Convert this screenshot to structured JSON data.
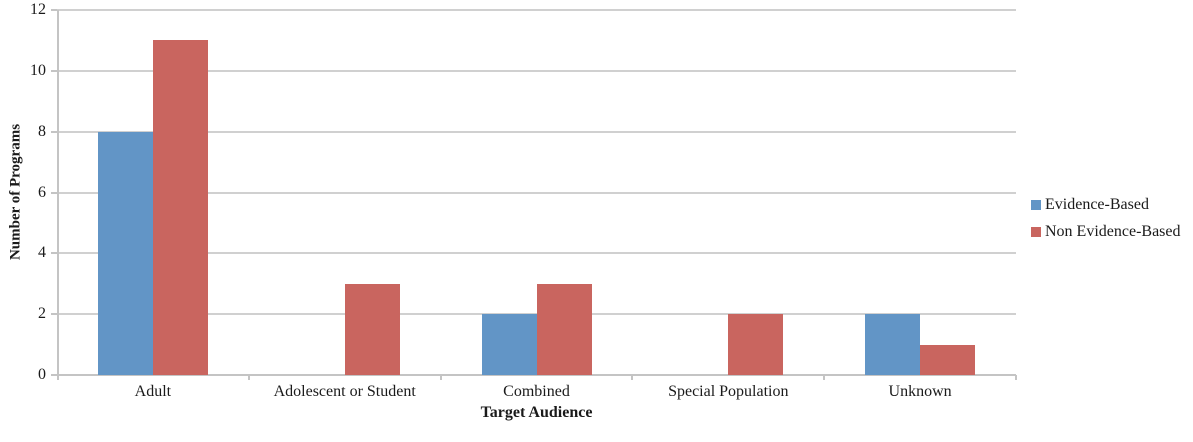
{
  "chart_data": {
    "type": "bar",
    "title": "",
    "categories": [
      "Adult",
      "Adolescent or Student",
      "Combined",
      "Special Population",
      "Unknown"
    ],
    "series": [
      {
        "name": "Evidence-Based",
        "color": "#6295c6",
        "values": [
          8,
          0,
          2,
          0,
          2
        ]
      },
      {
        "name": "Non Evidence-Based",
        "color": "#c9655f",
        "values": [
          11,
          3,
          3,
          2,
          1
        ]
      }
    ],
    "xlabel": "Target Audience",
    "ylabel": "Number of Programs",
    "ylim": [
      0,
      12
    ],
    "ytick_step": 2,
    "ytick_labels": [
      "0",
      "2",
      "4",
      "6",
      "8",
      "10",
      "12"
    ],
    "grid": "horizontal",
    "legend_position": "right",
    "colors": {
      "gridline": "#d0d0d0",
      "axis": "#c4c4c4",
      "background": "#ffffff"
    }
  }
}
